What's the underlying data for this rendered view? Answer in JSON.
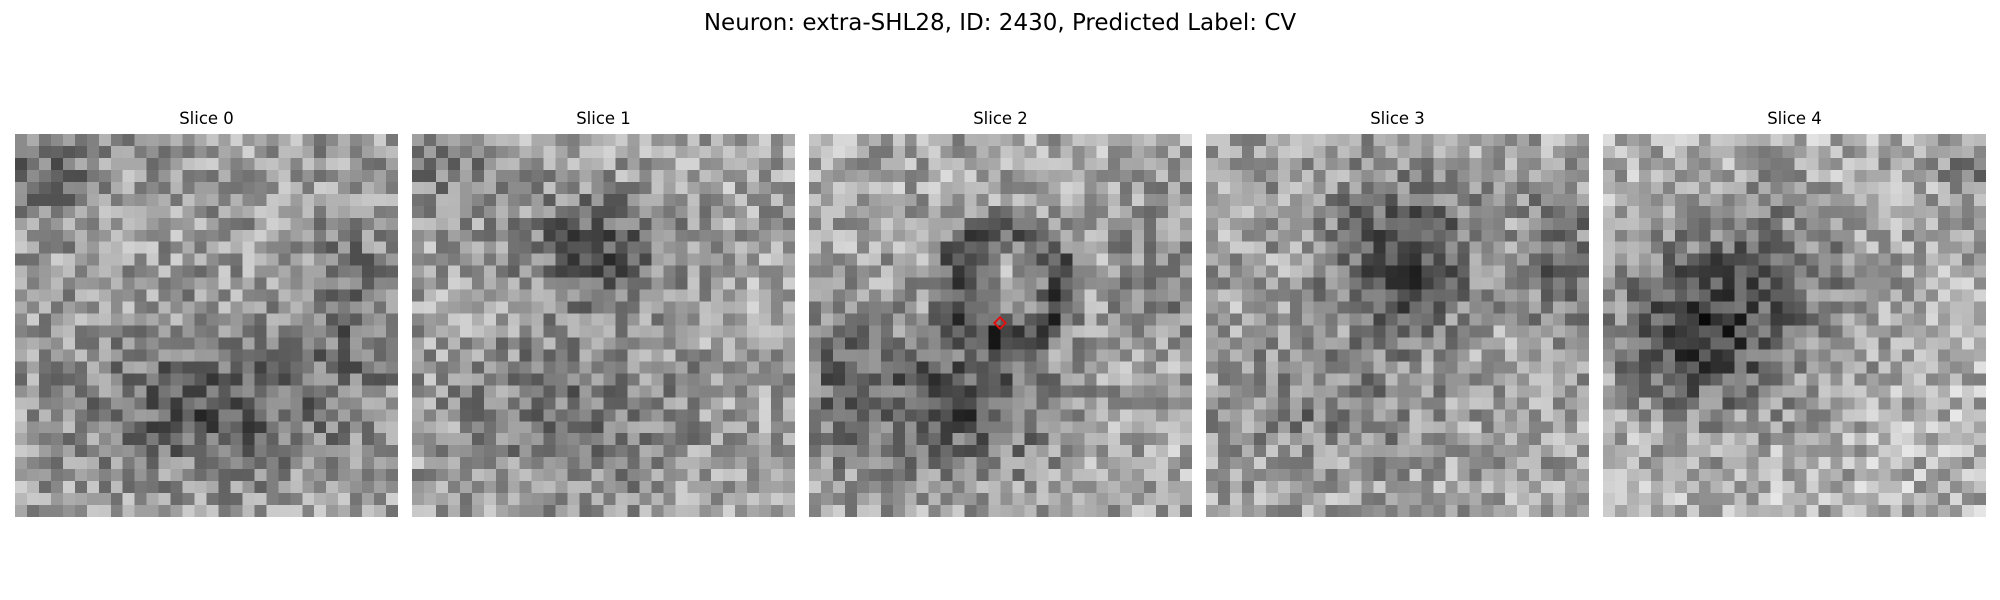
{
  "figure": {
    "title": "Neuron: extra-SHL28, ID: 2430, Predicted Label: CV"
  },
  "slices": [
    {
      "title": "Slice 0",
      "pattern": "diffuse-lower-dark",
      "has_marker": false
    },
    {
      "title": "Slice 1",
      "pattern": "blob-upper-center",
      "has_marker": false
    },
    {
      "title": "Slice 2",
      "pattern": "ring-center",
      "has_marker": true
    },
    {
      "title": "Slice 3",
      "pattern": "blob-upper-center-strong",
      "has_marker": false
    },
    {
      "title": "Slice 4",
      "pattern": "blob-left-center",
      "has_marker": false
    }
  ],
  "marker": {
    "color": "#e01010",
    "shape": "diamond",
    "slice_index": 2
  },
  "colormap": "gray"
}
